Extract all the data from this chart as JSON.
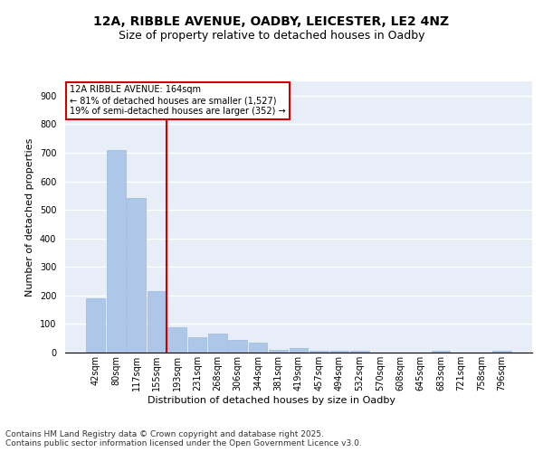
{
  "title_line1": "12A, RIBBLE AVENUE, OADBY, LEICESTER, LE2 4NZ",
  "title_line2": "Size of property relative to detached houses in Oadby",
  "xlabel": "Distribution of detached houses by size in Oadby",
  "ylabel": "Number of detached properties",
  "bar_color": "#aec6e8",
  "bar_edge_color": "#8ab4d8",
  "background_color": "#e8eef8",
  "grid_color": "#ffffff",
  "annotation_box_color": "#cc0000",
  "vline_color": "#cc0000",
  "bins": [
    "42sqm",
    "80sqm",
    "117sqm",
    "155sqm",
    "193sqm",
    "231sqm",
    "268sqm",
    "306sqm",
    "344sqm",
    "381sqm",
    "419sqm",
    "457sqm",
    "494sqm",
    "532sqm",
    "570sqm",
    "608sqm",
    "645sqm",
    "683sqm",
    "721sqm",
    "758sqm",
    "796sqm"
  ],
  "values": [
    190,
    710,
    540,
    215,
    90,
    55,
    65,
    45,
    35,
    10,
    15,
    5,
    5,
    5,
    0,
    0,
    0,
    5,
    0,
    0,
    5
  ],
  "vline_x": 3.5,
  "annotation_text": "12A RIBBLE AVENUE: 164sqm\n← 81% of detached houses are smaller (1,527)\n19% of semi-detached houses are larger (352) →",
  "ylim": [
    0,
    950
  ],
  "yticks": [
    0,
    100,
    200,
    300,
    400,
    500,
    600,
    700,
    800,
    900
  ],
  "footnote": "Contains HM Land Registry data © Crown copyright and database right 2025.\nContains public sector information licensed under the Open Government Licence v3.0.",
  "title_fontsize": 10,
  "subtitle_fontsize": 9,
  "label_fontsize": 8,
  "tick_fontsize": 7,
  "footnote_fontsize": 6.5,
  "annotation_fontsize": 7
}
